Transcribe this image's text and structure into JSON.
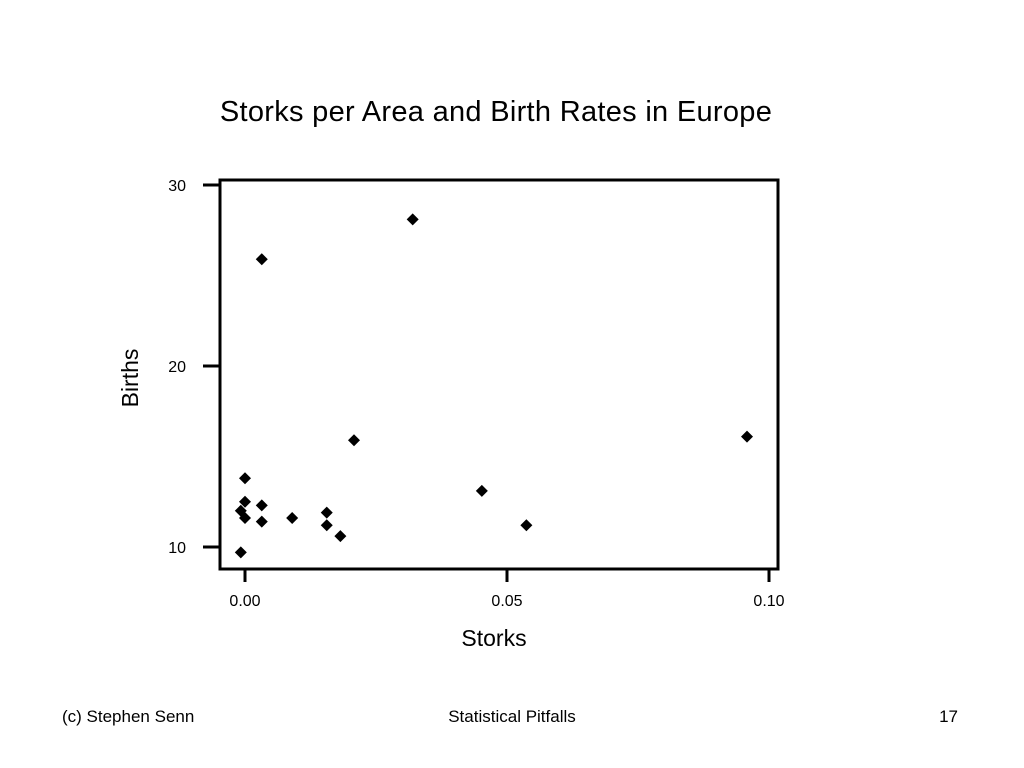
{
  "slide": {
    "footer_left": "(c) Stephen Senn",
    "footer_center": "Statistical Pitfalls",
    "footer_right": "17"
  },
  "chart_data": {
    "type": "scatter",
    "title": "Storks per Area and Birth Rates in Europe",
    "xlabel": "Storks",
    "ylabel": "Births",
    "xlim": [
      -0.005,
      0.102
    ],
    "ylim": [
      8.8,
      30.3
    ],
    "xticks": [
      0.0,
      0.05,
      0.1
    ],
    "xtick_labels": [
      "0.00",
      "0.05",
      "0.10"
    ],
    "yticks": [
      10,
      20,
      30
    ],
    "ytick_labels": [
      "10",
      "20",
      "30"
    ],
    "marker": "diamond",
    "marker_color": "#000000",
    "grid": false,
    "points": [
      {
        "x": 0.0032,
        "y": 25.9
      },
      {
        "x": 0.032,
        "y": 28.1
      },
      {
        "x": 0.0958,
        "y": 16.1
      },
      {
        "x": 0.0208,
        "y": 15.9
      },
      {
        "x": 0.0452,
        "y": 13.1
      },
      {
        "x": 0.0537,
        "y": 11.2
      },
      {
        "x": 0.0,
        "y": 13.8
      },
      {
        "x": 0.0,
        "y": 12.5
      },
      {
        "x": 0.0032,
        "y": 12.3
      },
      {
        "x": -0.0008,
        "y": 12.0
      },
      {
        "x": 0.0,
        "y": 11.6
      },
      {
        "x": 0.0032,
        "y": 11.4
      },
      {
        "x": 0.009,
        "y": 11.6
      },
      {
        "x": 0.0156,
        "y": 11.9
      },
      {
        "x": 0.0156,
        "y": 11.2
      },
      {
        "x": 0.0182,
        "y": 10.6
      },
      {
        "x": -0.0008,
        "y": 9.7
      }
    ]
  }
}
